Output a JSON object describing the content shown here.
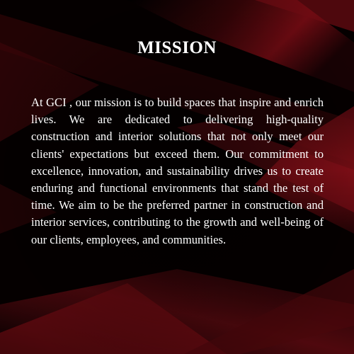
{
  "page": {
    "title": "MISSION",
    "body": "At GCI , our mission is to build spaces that inspire and enrich lives. We are dedicated to delivering high-quality construction and interior solutions that not only meet our clients' expectations but exceed them. Our commitment to excellence, innovation, and sustainability drives us to create enduring and functional environments that stand the test of time. We aim to be the preferred partner in construction and interior services, contributing to the growth and well-being of our clients, employees, and communities."
  },
  "colors": {
    "background": "#000000",
    "accent": "#8b0a12",
    "text": "#ffffff"
  }
}
